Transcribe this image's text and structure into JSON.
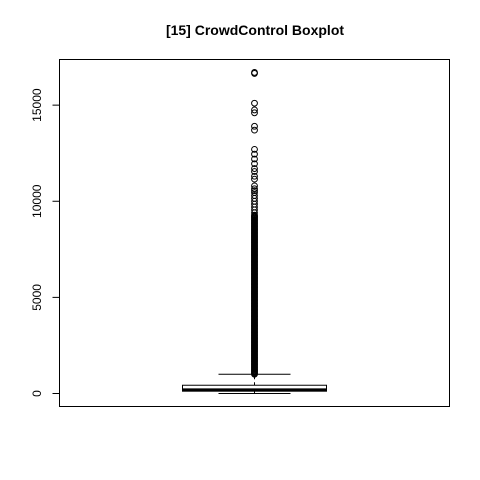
{
  "chart_data": {
    "type": "box",
    "title": "[15] CrowdControl Boxplot",
    "xlabel": "",
    "ylabel": "",
    "ylim": [
      -650,
      17400
    ],
    "yticks": [
      0,
      5000,
      10000,
      15000
    ],
    "ytick_labels": [
      "0",
      "5000",
      "10000",
      "15000"
    ],
    "grid": false,
    "box": {
      "whisker_low": 0,
      "q1": 120,
      "median": 190,
      "q3": 430,
      "whisker_high": 1000
    },
    "outliers_dense_range": [
      1000,
      9300
    ],
    "outliers": [
      9400,
      9550,
      9700,
      9850,
      10000,
      10150,
      10300,
      10450,
      10550,
      10650,
      10800,
      11150,
      11300,
      11550,
      11700,
      11950,
      12200,
      12450,
      12700,
      13700,
      13900,
      14600,
      14750,
      15100,
      16650,
      16700
    ],
    "colors": {
      "stroke": "#000000",
      "box_fill": "#ffffff",
      "background": "#ffffff"
    }
  }
}
